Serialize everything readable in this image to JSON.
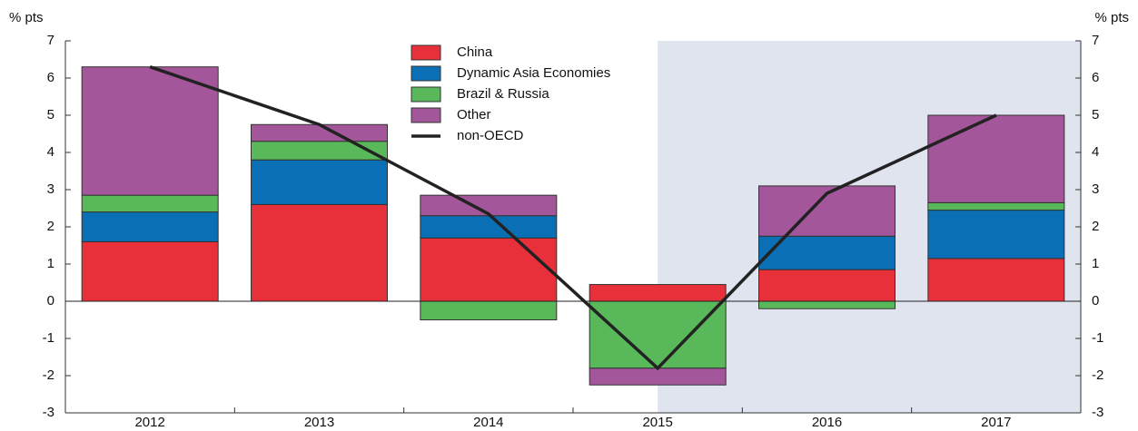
{
  "chart_data": {
    "type": "bar",
    "stacked": true,
    "ylabel": "% pts",
    "y2label": "% pts",
    "categories": [
      "2012",
      "2013",
      "2014",
      "2015",
      "2016",
      "2017"
    ],
    "shade_start": "2015",
    "shade_color": "#dfe4ef",
    "series": [
      {
        "name": "China",
        "type": "bar",
        "color": "#e8303a",
        "values": [
          1.6,
          2.6,
          1.7,
          0.45,
          0.85,
          1.15
        ]
      },
      {
        "name": "Dynamic Asia Economies",
        "type": "bar",
        "color": "#0a6fb5",
        "values": [
          0.8,
          1.2,
          0.6,
          0,
          0.9,
          1.3
        ]
      },
      {
        "name": "Brazil & Russia",
        "type": "bar",
        "color": "#59b85a",
        "values": [
          0.45,
          0.5,
          -0.5,
          -1.8,
          -0.2,
          0.2
        ]
      },
      {
        "name": "Other",
        "type": "bar",
        "color": "#a3579a",
        "values": [
          3.45,
          0.45,
          0.55,
          -0.45,
          1.35,
          2.35
        ]
      },
      {
        "name": "non-OECD",
        "type": "line",
        "color": "#222222",
        "values": [
          6.3,
          4.75,
          2.35,
          -1.8,
          2.9,
          5.0
        ]
      }
    ],
    "ylim": [
      -3,
      7
    ],
    "yticks": [
      -3,
      -2,
      -1,
      0,
      1,
      2,
      3,
      4,
      5,
      6,
      7
    ],
    "y2lim": [
      -3,
      7
    ],
    "y2ticks": [
      -3,
      -2,
      -1,
      0,
      1,
      2,
      3,
      4,
      5,
      6,
      7
    ]
  }
}
